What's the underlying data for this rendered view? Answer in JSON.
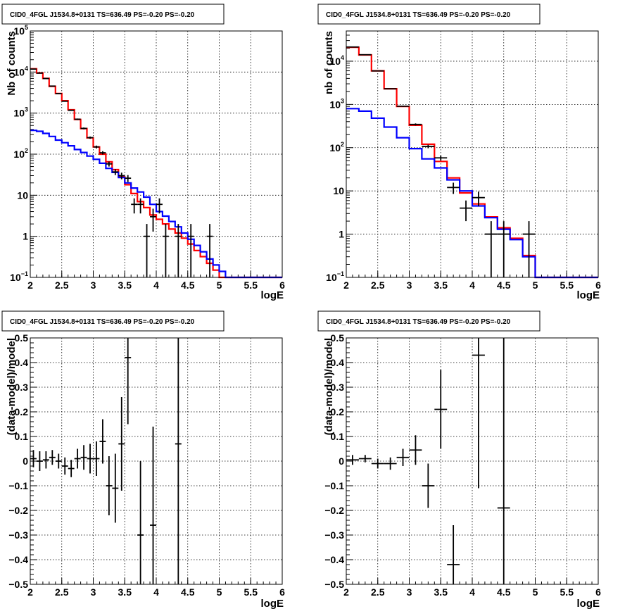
{
  "colors": {
    "data": "#000000",
    "total_model": "#ff0000",
    "component_model": "#0000ff"
  },
  "chart_data": [
    {
      "type": "line",
      "panel": "top-left",
      "title": "CID0_4FGL J1534.8+0131 TS=636.49 PS=-0.20 PS=-0.20",
      "xlabel": "logE",
      "ylabel": "Nb of counts",
      "xlim": [
        2,
        6
      ],
      "ylim": [
        0.1,
        100000
      ],
      "yscale": "log",
      "grid": true,
      "x_ticks": [
        "2",
        "2.5",
        "3",
        "3.5",
        "4",
        "4.5",
        "5",
        "5.5",
        "6"
      ],
      "y_ticks": [
        {
          "v": 0.1,
          "base": "10",
          "exp": "−1"
        },
        {
          "v": 1,
          "label": "1"
        },
        {
          "v": 10,
          "label": "10"
        },
        {
          "v": 100,
          "base": "10",
          "exp": "2"
        },
        {
          "v": 1000,
          "base": "10",
          "exp": "3"
        },
        {
          "v": 10000,
          "base": "10",
          "exp": "4"
        },
        {
          "v": 100000,
          "base": "10",
          "exp": "5"
        }
      ],
      "bin_edges": [
        2.0,
        2.1,
        2.2,
        2.3,
        2.4,
        2.5,
        2.6,
        2.7,
        2.8,
        2.9,
        3.0,
        3.1,
        3.2,
        3.3,
        3.4,
        3.5,
        3.6,
        3.7,
        3.8,
        3.9,
        4.0,
        4.1,
        4.2,
        4.3,
        4.4,
        4.5,
        4.6,
        4.7,
        4.8,
        4.9,
        5.0,
        5.1,
        5.2,
        5.3,
        5.4,
        5.5,
        5.6,
        5.7,
        5.8,
        5.9,
        6.0
      ],
      "series": [
        {
          "role": "total_model",
          "values": [
            12000,
            9500,
            7000,
            4500,
            3000,
            2000,
            1200,
            700,
            420,
            250,
            150,
            100,
            65,
            42,
            28,
            18,
            11,
            7,
            5,
            3.3,
            2.6,
            2.0,
            1.5,
            1.2,
            0.9,
            0.65,
            0.45,
            0.32,
            0.22,
            0.15,
            0.1,
            0.1,
            0.1,
            0.1,
            0.1,
            0.1,
            0.1,
            0.1,
            0.1,
            0.1
          ]
        },
        {
          "role": "component_model",
          "values": [
            380,
            360,
            320,
            270,
            220,
            190,
            160,
            130,
            110,
            90,
            75,
            60,
            45,
            36,
            27,
            20,
            15,
            12,
            9,
            6,
            4,
            3.1,
            2.3,
            1.7,
            1.2,
            0.85,
            0.6,
            0.42,
            0.28,
            0.2,
            0.14,
            0.1,
            0.1,
            0.1,
            0.1,
            0.1,
            0.1,
            0.1,
            0.1,
            0.1
          ]
        }
      ],
      "points": [
        {
          "x": 2.05,
          "y": 11800,
          "err": 110
        },
        {
          "x": 2.15,
          "y": 9400,
          "err": 97
        },
        {
          "x": 2.25,
          "y": 6950,
          "err": 83
        },
        {
          "x": 2.35,
          "y": 4550,
          "err": 67
        },
        {
          "x": 2.45,
          "y": 2990,
          "err": 55
        },
        {
          "x": 2.55,
          "y": 1950,
          "err": 44
        },
        {
          "x": 2.65,
          "y": 1170,
          "err": 34
        },
        {
          "x": 2.75,
          "y": 710,
          "err": 27
        },
        {
          "x": 2.85,
          "y": 425,
          "err": 21
        },
        {
          "x": 2.95,
          "y": 253,
          "err": 16
        },
        {
          "x": 3.05,
          "y": 150,
          "err": 12
        },
        {
          "x": 3.15,
          "y": 108,
          "err": 10
        },
        {
          "x": 3.25,
          "y": 58,
          "err": 8
        },
        {
          "x": 3.35,
          "y": 37,
          "err": 6
        },
        {
          "x": 3.45,
          "y": 30,
          "err": 5.5
        },
        {
          "x": 3.55,
          "y": 26,
          "err": 5
        },
        {
          "x": 3.65,
          "y": 6,
          "err": 2.4
        },
        {
          "x": 3.75,
          "y": 6,
          "err": 2.4
        },
        {
          "x": 3.85,
          "y": 1,
          "err": 1
        },
        {
          "x": 3.95,
          "y": 3,
          "err": 1.7
        },
        {
          "x": 4.05,
          "y": 6,
          "err": 2.4
        },
        {
          "x": 4.15,
          "y": 1,
          "err": 1
        },
        {
          "x": 4.35,
          "y": 1,
          "err": 1
        },
        {
          "x": 4.55,
          "y": 1,
          "err": 1
        },
        {
          "x": 4.85,
          "y": 1,
          "err": 1
        }
      ]
    },
    {
      "type": "line",
      "panel": "top-right",
      "title": "CID0_4FGL J1534.8+0131 TS=636.49 PS=-0.20 PS=-0.20",
      "xlabel": "logE",
      "ylabel": "nb of counts",
      "xlim": [
        2,
        6
      ],
      "ylim": [
        0.1,
        50000
      ],
      "yscale": "log",
      "grid": true,
      "x_ticks": [
        "2",
        "2.5",
        "3",
        "3.5",
        "4",
        "4.5",
        "5",
        "5.5",
        "6"
      ],
      "y_ticks": [
        {
          "v": 0.1,
          "base": "10",
          "exp": "−1"
        },
        {
          "v": 1,
          "label": "1"
        },
        {
          "v": 10,
          "label": "10"
        },
        {
          "v": 100,
          "base": "10",
          "exp": "2"
        },
        {
          "v": 1000,
          "base": "10",
          "exp": "3"
        },
        {
          "v": 10000,
          "base": "10",
          "exp": "4"
        }
      ],
      "bin_edges": [
        2.0,
        2.2,
        2.4,
        2.6,
        2.8,
        3.0,
        3.2,
        3.4,
        3.6,
        3.8,
        4.0,
        4.2,
        4.4,
        4.6,
        4.8,
        5.0,
        5.2,
        5.4,
        5.6,
        5.8,
        6.0
      ],
      "series": [
        {
          "role": "total_model",
          "values": [
            21000,
            14000,
            6000,
            2300,
            900,
            330,
            120,
            48,
            20,
            9,
            5,
            2.5,
            1.4,
            0.8,
            0.32,
            0.1,
            0.1,
            0.1,
            0.1,
            0.1
          ]
        },
        {
          "role": "component_model",
          "values": [
            800,
            700,
            480,
            300,
            170,
            95,
            55,
            34,
            18,
            10,
            4.5,
            2.4,
            1.3,
            0.75,
            0.3,
            0.1,
            0.1,
            0.1,
            0.1,
            0.1
          ]
        }
      ],
      "points": [
        {
          "x": 2.1,
          "y": 21300,
          "err": 146
        },
        {
          "x": 2.3,
          "y": 14100,
          "err": 119
        },
        {
          "x": 2.5,
          "y": 5950,
          "err": 77
        },
        {
          "x": 2.7,
          "y": 2300,
          "err": 48
        },
        {
          "x": 2.9,
          "y": 910,
          "err": 30
        },
        {
          "x": 3.1,
          "y": 345,
          "err": 19
        },
        {
          "x": 3.3,
          "y": 107,
          "err": 10
        },
        {
          "x": 3.5,
          "y": 58,
          "err": 7.6
        },
        {
          "x": 3.7,
          "y": 12,
          "err": 3.5
        },
        {
          "x": 3.9,
          "y": 4,
          "err": 2
        },
        {
          "x": 4.1,
          "y": 7,
          "err": 2.6
        },
        {
          "x": 4.3,
          "y": 1,
          "err": 1
        },
        {
          "x": 4.5,
          "y": 1,
          "err": 1
        },
        {
          "x": 4.9,
          "y": 1,
          "err": 1
        }
      ]
    },
    {
      "type": "scatter",
      "panel": "bottom-left",
      "title": "CID0_4FGL J1534.8+0131 TS=636.49 PS=-0.20 PS=-0.20",
      "xlabel": "logE",
      "ylabel": "(data-model)/model",
      "xlim": [
        2,
        6
      ],
      "ylim": [
        -0.5,
        0.5
      ],
      "grid": true,
      "x_ticks": [
        "2",
        "2.5",
        "3",
        "3.5",
        "4",
        "4.5",
        "5",
        "5.5",
        "6"
      ],
      "y_ticks": [
        "−0.5",
        "−0.4",
        "−0.3",
        "−0.2",
        "−0.1",
        "0",
        "0.1",
        "0.2",
        "0.3",
        "0.4",
        "0.5"
      ],
      "points": [
        {
          "x": 2.05,
          "y": 0.01,
          "err": 0.035
        },
        {
          "x": 2.15,
          "y": 0.0,
          "err": 0.04
        },
        {
          "x": 2.25,
          "y": 0.005,
          "err": 0.035
        },
        {
          "x": 2.35,
          "y": 0.015,
          "err": 0.03
        },
        {
          "x": 2.45,
          "y": 0.0,
          "err": 0.03
        },
        {
          "x": 2.55,
          "y": -0.02,
          "err": 0.035
        },
        {
          "x": 2.65,
          "y": -0.03,
          "err": 0.035
        },
        {
          "x": 2.75,
          "y": 0.01,
          "err": 0.04
        },
        {
          "x": 2.85,
          "y": 0.015,
          "err": 0.05
        },
        {
          "x": 2.95,
          "y": 0.01,
          "err": 0.06
        },
        {
          "x": 3.05,
          "y": 0.01,
          "err": 0.07
        },
        {
          "x": 3.15,
          "y": 0.08,
          "err": 0.09
        },
        {
          "x": 3.25,
          "y": -0.1,
          "err": 0.12
        },
        {
          "x": 3.35,
          "y": -0.11,
          "err": 0.14
        },
        {
          "x": 3.45,
          "y": 0.07,
          "err": 0.19
        },
        {
          "x": 3.55,
          "y": 0.42,
          "err": 0.27
        },
        {
          "x": 3.75,
          "y": -0.3,
          "err": 0.3
        },
        {
          "x": 3.95,
          "y": -0.26,
          "err": 0.4
        },
        {
          "x": 4.35,
          "y": 0.07,
          "err": 0.6
        }
      ]
    },
    {
      "type": "scatter",
      "panel": "bottom-right",
      "title": "CID0_4FGL J1534.8+0131 TS=636.49 PS=-0.20 PS=-0.20",
      "xlabel": "logE",
      "ylabel": "(data-model)/model",
      "xlim": [
        2,
        6
      ],
      "ylim": [
        -0.5,
        0.5
      ],
      "grid": true,
      "x_ticks": [
        "2",
        "2.5",
        "3",
        "3.5",
        "4",
        "4.5",
        "5",
        "5.5",
        "6"
      ],
      "y_ticks": [
        "−0.5",
        "−0.4",
        "−0.3",
        "−0.2",
        "−0.1",
        "0",
        "0.1",
        "0.2",
        "0.3",
        "0.4",
        "0.5"
      ],
      "points": [
        {
          "x": 2.1,
          "y": 0.005,
          "err": 0.02
        },
        {
          "x": 2.3,
          "y": 0.01,
          "err": 0.015
        },
        {
          "x": 2.5,
          "y": -0.01,
          "err": 0.02
        },
        {
          "x": 2.7,
          "y": -0.01,
          "err": 0.025
        },
        {
          "x": 2.9,
          "y": 0.015,
          "err": 0.035
        },
        {
          "x": 3.1,
          "y": 0.045,
          "err": 0.06
        },
        {
          "x": 3.3,
          "y": -0.1,
          "err": 0.09
        },
        {
          "x": 3.5,
          "y": 0.21,
          "err": 0.16
        },
        {
          "x": 3.7,
          "y": -0.42,
          "err": 0.16
        },
        {
          "x": 4.1,
          "y": 0.43,
          "err": 0.54
        },
        {
          "x": 4.5,
          "y": -0.19,
          "err": 0.8
        }
      ]
    }
  ]
}
